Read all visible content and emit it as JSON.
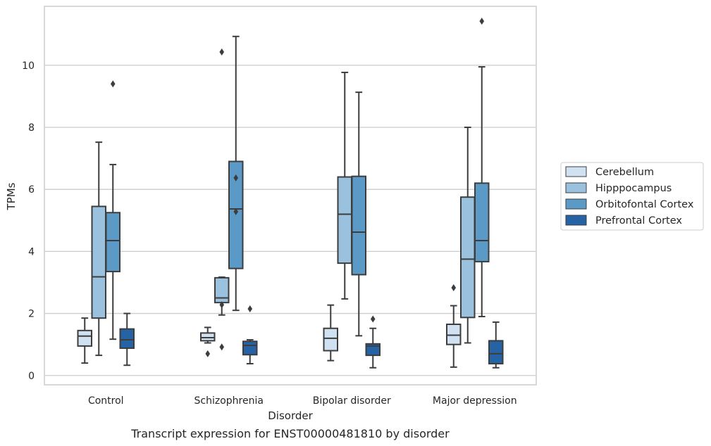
{
  "chart_data": {
    "type": "boxplot",
    "xlabel": "Disorder",
    "ylabel": "TPMs",
    "caption": "Transcript expression for ENST00000481810 by disorder",
    "ylim": [
      -0.3,
      11.9
    ],
    "yticks": [
      0,
      2,
      4,
      6,
      8,
      10
    ],
    "grid": "horizontal",
    "legend_position": "right",
    "categories": [
      "Control",
      "Schizophrenia",
      "Bipolar disorder",
      "Major depression"
    ],
    "series": [
      {
        "name": "Cerebellum",
        "color": "#d0e1f2",
        "boxes": [
          {
            "whisker_low": 0.4,
            "q1": 0.95,
            "median": 1.27,
            "q3": 1.45,
            "whisker_high": 1.85,
            "outliers": []
          },
          {
            "whisker_low": 1.05,
            "q1": 1.12,
            "median": 1.22,
            "q3": 1.37,
            "whisker_high": 1.55,
            "outliers": [
              0.7
            ]
          },
          {
            "whisker_low": 0.48,
            "q1": 0.8,
            "median": 1.2,
            "q3": 1.52,
            "whisker_high": 2.27,
            "outliers": []
          },
          {
            "whisker_low": 0.27,
            "q1": 1.0,
            "median": 1.3,
            "q3": 1.65,
            "whisker_high": 2.25,
            "outliers": [
              2.83
            ]
          }
        ]
      },
      {
        "name": "Hipppocampus",
        "color": "#9ac1dd",
        "boxes": [
          {
            "whisker_low": 0.65,
            "q1": 1.85,
            "median": 3.18,
            "q3": 5.45,
            "whisker_high": 7.52,
            "outliers": []
          },
          {
            "whisker_low": 1.95,
            "q1": 2.35,
            "median": 2.5,
            "q3": 3.15,
            "whisker_high": 3.17,
            "outliers": [
              2.28,
              0.92,
              10.43
            ]
          },
          {
            "whisker_low": 2.47,
            "q1": 3.62,
            "median": 5.2,
            "q3": 6.4,
            "whisker_high": 9.77,
            "outliers": []
          },
          {
            "whisker_low": 1.05,
            "q1": 1.87,
            "median": 3.75,
            "q3": 5.75,
            "whisker_high": 8.0,
            "outliers": []
          }
        ]
      },
      {
        "name": "Orbitofontal Cortex",
        "color": "#5b9ac7",
        "boxes": [
          {
            "whisker_low": 1.17,
            "q1": 3.35,
            "median": 4.35,
            "q3": 5.25,
            "whisker_high": 6.8,
            "outliers": [
              9.4
            ]
          },
          {
            "whisker_low": 2.1,
            "q1": 3.45,
            "median": 5.37,
            "q3": 6.9,
            "whisker_high": 10.93,
            "outliers": [
              6.37,
              5.28
            ]
          },
          {
            "whisker_low": 1.28,
            "q1": 3.25,
            "median": 4.62,
            "q3": 6.42,
            "whisker_high": 9.13,
            "outliers": []
          },
          {
            "whisker_low": 1.9,
            "q1": 3.67,
            "median": 4.35,
            "q3": 6.2,
            "whisker_high": 9.95,
            "outliers": [
              11.42
            ]
          }
        ]
      },
      {
        "name": "Prefrontal Cortex",
        "color": "#2563a4",
        "boxes": [
          {
            "whisker_low": 0.33,
            "q1": 0.88,
            "median": 1.15,
            "q3": 1.5,
            "whisker_high": 2.0,
            "outliers": []
          },
          {
            "whisker_low": 0.38,
            "q1": 0.67,
            "median": 0.97,
            "q3": 1.1,
            "whisker_high": 1.15,
            "outliers": [
              2.15
            ]
          },
          {
            "whisker_low": 0.25,
            "q1": 0.65,
            "median": 0.95,
            "q3": 1.02,
            "whisker_high": 1.52,
            "outliers": [
              1.82
            ]
          },
          {
            "whisker_low": 0.25,
            "q1": 0.38,
            "median": 0.7,
            "q3": 1.12,
            "whisker_high": 1.72,
            "outliers": []
          }
        ]
      }
    ]
  }
}
